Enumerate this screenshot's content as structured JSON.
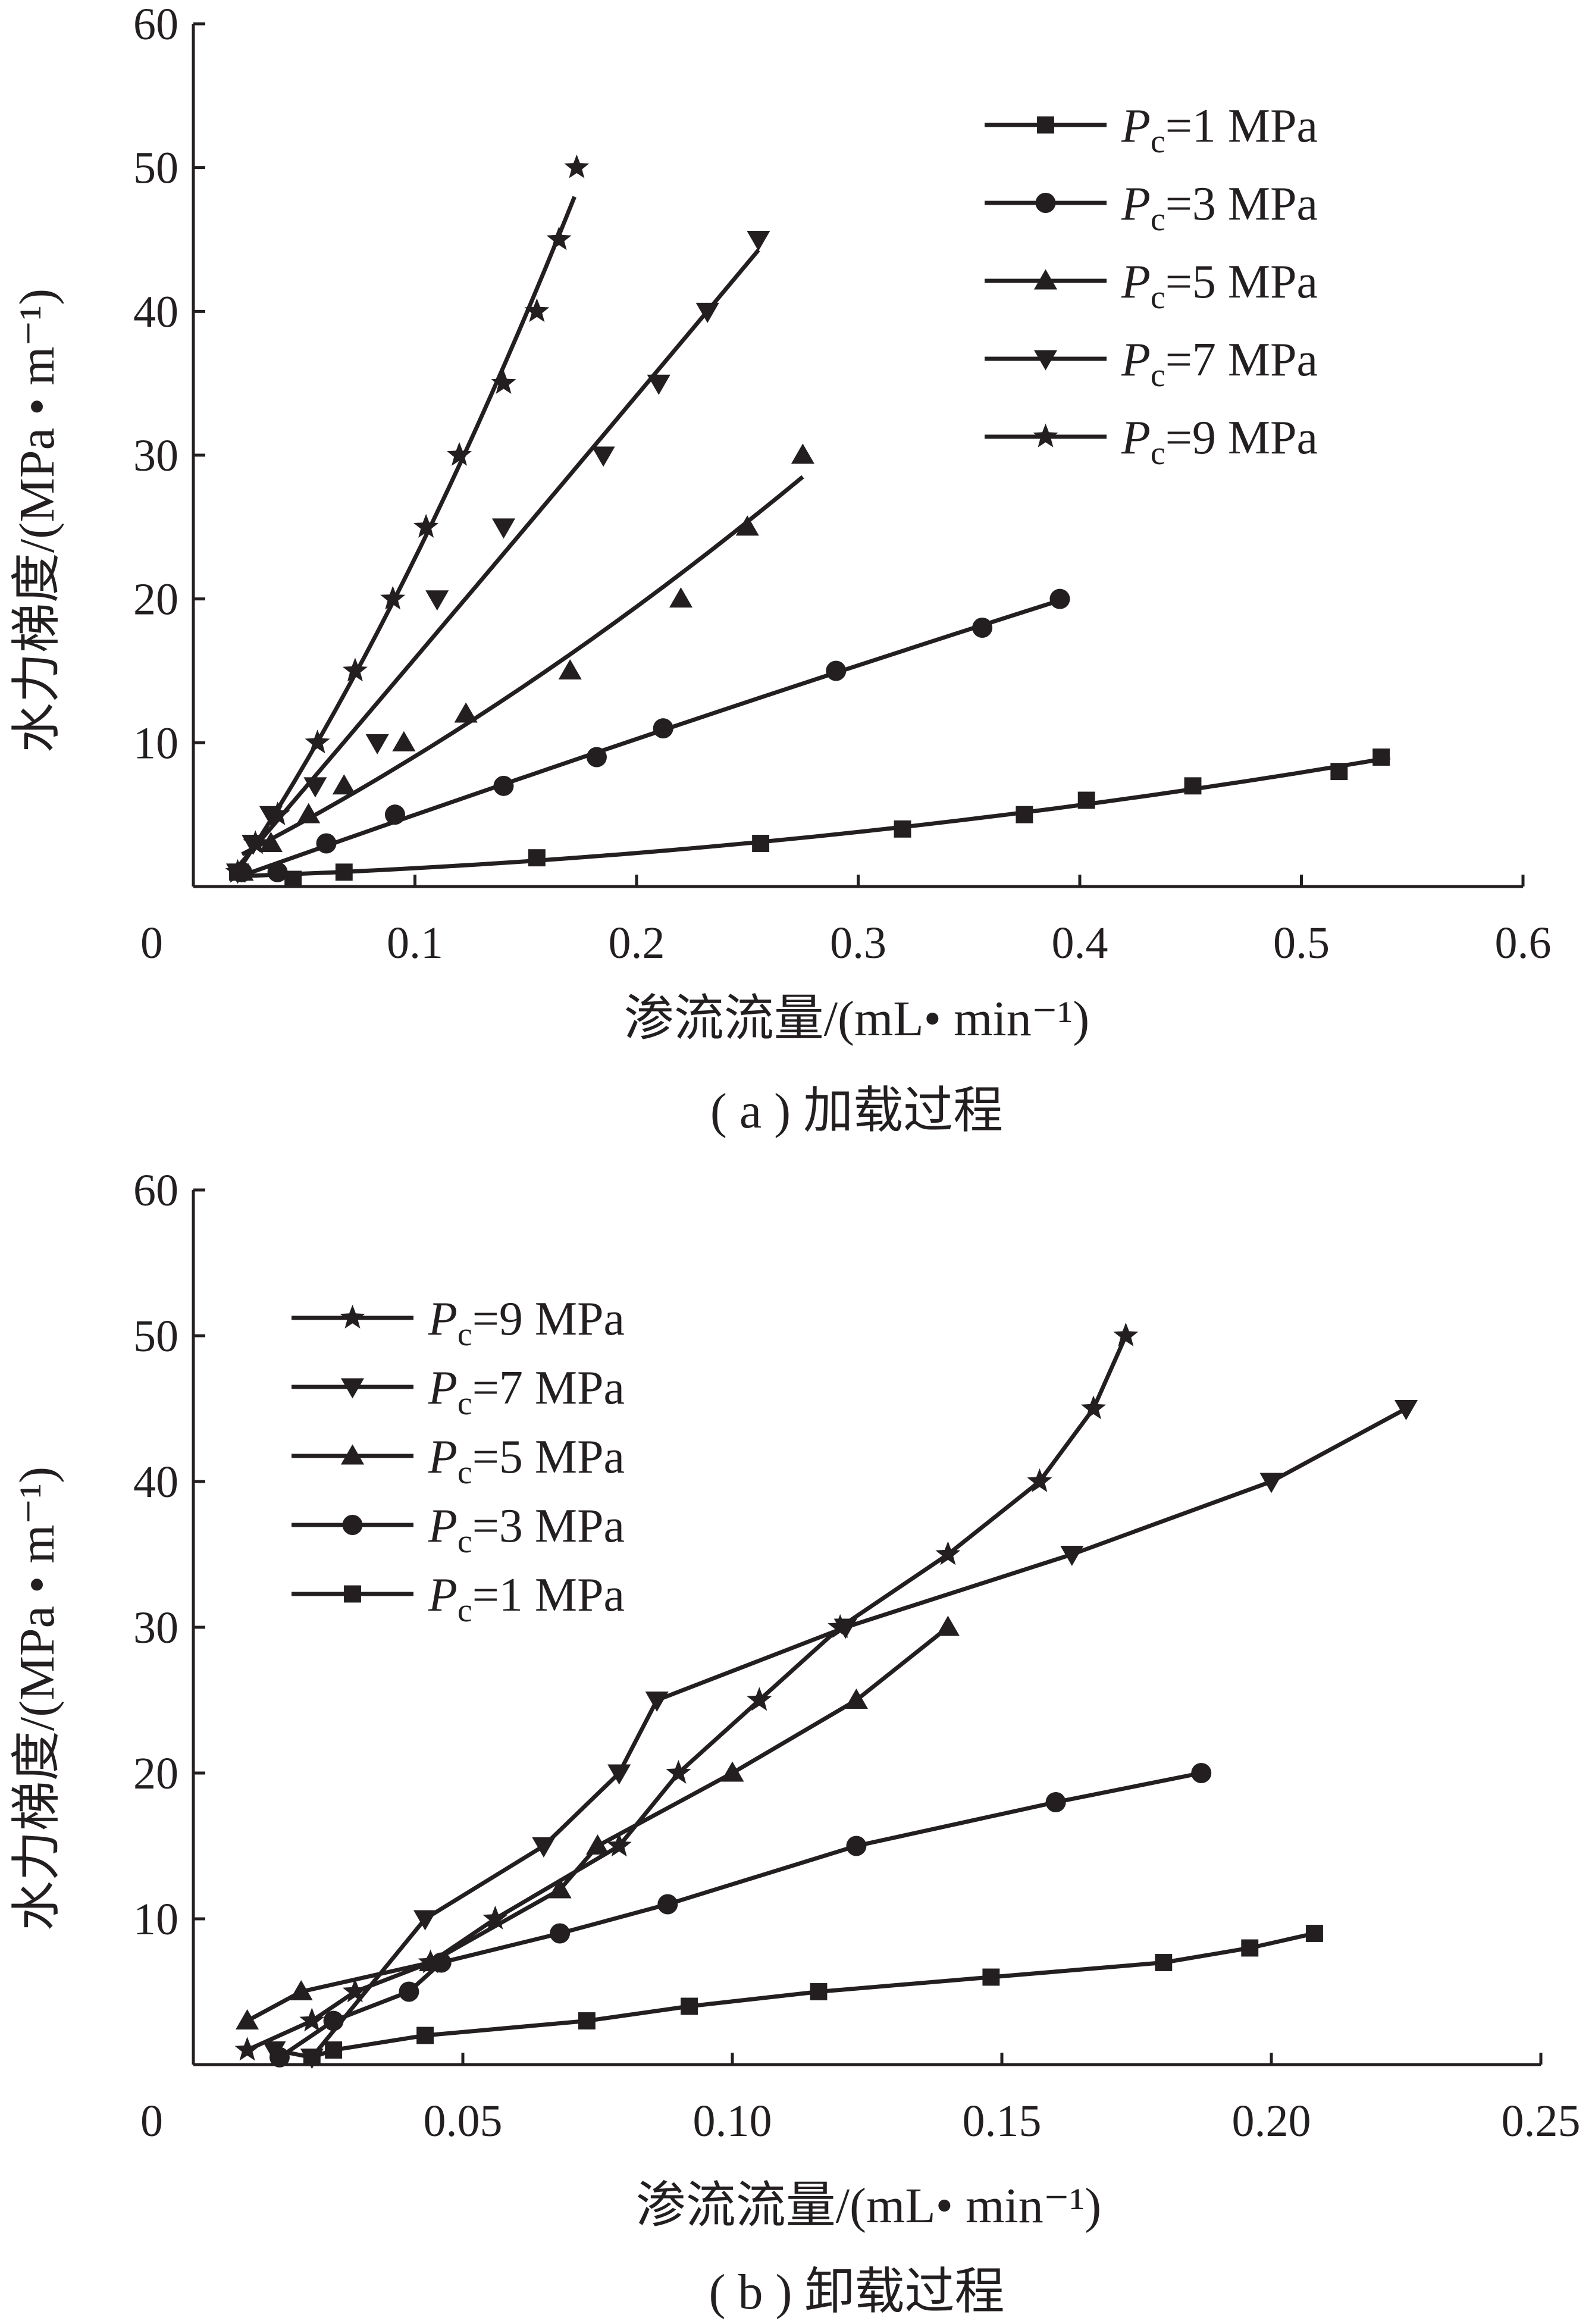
{
  "chart_data": [
    {
      "type": "line",
      "caption": "( a ) 加载过程",
      "xlabel": "渗流流量/(mL• min⁻¹)",
      "ylabel": "水力梯度/(MPa • m⁻¹)",
      "xlim": [
        0,
        0.6
      ],
      "ylim": [
        0,
        60
      ],
      "x_ticks": [
        "0",
        "0.1",
        "0.2",
        "0.3",
        "0.4",
        "0.5",
        "0.6"
      ],
      "y_ticks": [
        "10",
        "20",
        "30",
        "40",
        "50",
        "60"
      ],
      "legend_position": "top-right",
      "line_style": "fitted trend lines",
      "series": [
        {
          "name": "Pc=1 MPa",
          "name_main": "P",
          "name_sub": "c",
          "name_rest": "=1 MPa",
          "marker": "square",
          "x": [
            0.02,
            0.045,
            0.068,
            0.155,
            0.256,
            0.32,
            0.375,
            0.403,
            0.451,
            0.517,
            0.536
          ],
          "y": [
            1,
            0.5,
            1,
            2,
            3,
            4,
            5,
            6,
            7,
            8,
            9
          ],
          "fit_x": [
            0.02,
            0.54
          ],
          "fit_y": [
            0.3,
            8.9
          ]
        },
        {
          "name": "Pc=3 MPa",
          "name_main": "P",
          "name_sub": "c",
          "name_rest": "=3 MPa",
          "marker": "circle",
          "x": [
            0.022,
            0.038,
            0.06,
            0.091,
            0.14,
            0.182,
            0.212,
            0.29,
            0.356,
            0.391
          ],
          "y": [
            1,
            1,
            3,
            5,
            7,
            9,
            11,
            15,
            18,
            20
          ],
          "fit_x": [
            0.022,
            0.39
          ],
          "fit_y": [
            0.8,
            20
          ]
        },
        {
          "name": "Pc=5 MPa",
          "name_main": "P",
          "name_sub": "c",
          "name_rest": "=5 MPa",
          "marker": "triangle-up",
          "x": [
            0.022,
            0.035,
            0.052,
            0.068,
            0.095,
            0.123,
            0.17,
            0.22,
            0.25,
            0.275
          ],
          "y": [
            1,
            3,
            5,
            7,
            10,
            12,
            15,
            20,
            25,
            30
          ],
          "fit_x": [
            0.022,
            0.275
          ],
          "fit_y": [
            0.8,
            28.6
          ]
        },
        {
          "name": "Pc=7 MPa",
          "name_main": "P",
          "name_sub": "c",
          "name_rest": "=7 MPa",
          "marker": "triangle-down",
          "x": [
            0.02,
            0.027,
            0.035,
            0.055,
            0.083,
            0.11,
            0.14,
            0.185,
            0.21,
            0.232,
            0.255
          ],
          "y": [
            1,
            3,
            5,
            7,
            10,
            20,
            25,
            30,
            35,
            40,
            45
          ],
          "fit_x": [
            0.02,
            0.255
          ],
          "fit_y": [
            0.9,
            45
          ]
        },
        {
          "name": "Pc=9 MPa",
          "name_main": "P",
          "name_sub": "c",
          "name_rest": "=9 MPa",
          "marker": "star",
          "x": [
            0.02,
            0.028,
            0.038,
            0.056,
            0.073,
            0.09,
            0.105,
            0.12,
            0.14,
            0.155,
            0.165,
            0.173
          ],
          "y": [
            1,
            3,
            5,
            10,
            15,
            20,
            25,
            30,
            35,
            40,
            45,
            50
          ],
          "fit_x": [
            0.02,
            0.172
          ],
          "fit_y": [
            0.9,
            48.5
          ]
        }
      ]
    },
    {
      "type": "line",
      "caption": "( b ) 卸载过程",
      "xlabel": "渗流流量/(mL• min⁻¹)",
      "ylabel": "水力梯度/(MPa • m⁻¹)",
      "xlim": [
        0,
        0.25
      ],
      "ylim": [
        0,
        60
      ],
      "x_ticks": [
        "0",
        "0.05",
        "0.10",
        "0.15",
        "0.20",
        "0.25"
      ],
      "y_ticks": [
        "10",
        "20",
        "30",
        "40",
        "50",
        "60"
      ],
      "legend_position": "top-left",
      "line_style": "point-to-point",
      "series": [
        {
          "name": "Pc=9 MPa",
          "name_main": "P",
          "name_sub": "c",
          "name_rest": "=9 MPa",
          "marker": "star",
          "x": [
            0.01,
            0.022,
            0.03,
            0.044,
            0.056,
            0.079,
            0.09,
            0.105,
            0.12,
            0.14,
            0.157,
            0.167,
            0.173
          ],
          "y": [
            1,
            3,
            5,
            7,
            10,
            15,
            20,
            25,
            30,
            35,
            40,
            45,
            50
          ]
        },
        {
          "name": "Pc=7 MPa",
          "name_main": "P",
          "name_sub": "c",
          "name_rest": "=7 MPa",
          "marker": "triangle-down",
          "x": [
            0.015,
            0.022,
            0.043,
            0.065,
            0.079,
            0.086,
            0.121,
            0.163,
            0.2,
            0.225
          ],
          "y": [
            1,
            0.5,
            10,
            15,
            20,
            25,
            30,
            35,
            40,
            45
          ]
        },
        {
          "name": "Pc=5 MPa",
          "name_main": "P",
          "name_sub": "c",
          "name_rest": "=5 MPa",
          "marker": "triangle-up",
          "x": [
            0.01,
            0.02,
            0.044,
            0.068,
            0.075,
            0.1,
            0.123,
            0.14
          ],
          "y": [
            3,
            5,
            7,
            12,
            15,
            20,
            25,
            30
          ]
        },
        {
          "name": "Pc=3 MPa",
          "name_main": "P",
          "name_sub": "c",
          "name_rest": "=3 MPa",
          "marker": "circle",
          "x": [
            0.016,
            0.026,
            0.04,
            0.046,
            0.068,
            0.088,
            0.123,
            0.16,
            0.187
          ],
          "y": [
            0.5,
            3,
            5,
            7,
            9,
            11,
            15,
            18,
            20
          ]
        },
        {
          "name": "Pc=1 MPa",
          "name_main": "P",
          "name_sub": "c",
          "name_rest": "=1 MPa",
          "marker": "square",
          "x": [
            0.022,
            0.026,
            0.043,
            0.073,
            0.092,
            0.116,
            0.148,
            0.18,
            0.196,
            0.208
          ],
          "y": [
            0.5,
            1,
            2,
            3,
            4,
            5,
            6,
            7,
            8,
            9
          ]
        }
      ]
    }
  ]
}
